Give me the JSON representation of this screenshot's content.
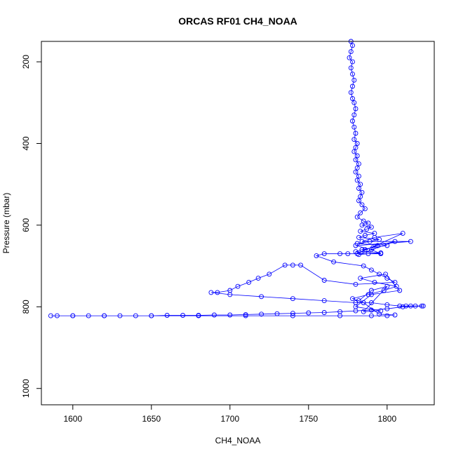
{
  "chart_data": {
    "type": "scatter",
    "title": "ORCAS RF01 CH4_NOAA",
    "xlabel": "CH4_NOAA",
    "ylabel": "Pressure (mbar)",
    "xlim": [
      1580,
      1830
    ],
    "ylim": [
      1040,
      150
    ],
    "y_reversed": true,
    "x_ticks": [
      1600,
      1650,
      1700,
      1750,
      1800
    ],
    "y_ticks": [
      200,
      400,
      600,
      800,
      1000
    ],
    "grid": false,
    "marker": "open-circle",
    "connected": true,
    "color": "#0000ff",
    "series": [
      {
        "x": [
          1777,
          1778,
          1777,
          1776,
          1778,
          1777,
          1778,
          1779,
          1778,
          1777,
          1778,
          1779,
          1780,
          1779,
          1778,
          1779,
          1780,
          1779,
          1781,
          1780,
          1779,
          1781,
          1780,
          1782,
          1781,
          1780,
          1782,
          1781,
          1783,
          1782,
          1784,
          1783,
          1782,
          1784,
          1786,
          1783,
          1781,
          1785,
          1788,
          1784,
          1790,
          1787,
          1783,
          1792,
          1786,
          1782,
          1795,
          1789,
          1781,
          1800,
          1791,
          1784,
          1780,
          1796,
          1788,
          1782,
          1805,
          1794,
          1786,
          1781,
          1810,
          1792,
          1784,
          1815,
          1780,
          1790,
          1796,
          1775,
          1770,
          1760,
          1755,
          1766,
          1785,
          1790,
          1795,
          1800,
          1805,
          1780,
          1760,
          1745,
          1740,
          1735,
          1725,
          1718,
          1712,
          1705,
          1700,
          1692,
          1688,
          1700,
          1720,
          1740,
          1760,
          1780,
          1790,
          1800,
          1808,
          1812,
          1815,
          1818,
          1822,
          1823,
          1810,
          1800,
          1790,
          1780,
          1770,
          1760,
          1750,
          1740,
          1730,
          1720,
          1710,
          1700,
          1690,
          1680,
          1670,
          1660,
          1650,
          1640,
          1630,
          1620,
          1610,
          1600,
          1590,
          1586,
          1600,
          1620,
          1650,
          1680,
          1710,
          1740,
          1770,
          1790,
          1800,
          1805,
          1795,
          1785,
          1778,
          1788,
          1798,
          1806,
          1792,
          1783,
          1799,
          1808,
          1790,
          1780,
          1796,
          1785,
          1800,
          1790,
          1782
        ],
        "y": [
          150,
          160,
          175,
          190,
          200,
          215,
          230,
          245,
          260,
          275,
          290,
          300,
          315,
          330,
          345,
          360,
          375,
          390,
          400,
          410,
          420,
          430,
          440,
          450,
          460,
          470,
          480,
          490,
          500,
          510,
          520,
          530,
          540,
          550,
          560,
          570,
          580,
          590,
          595,
          600,
          605,
          610,
          615,
          620,
          625,
          630,
          635,
          640,
          645,
          650,
          655,
          660,
          665,
          668,
          670,
          672,
          640,
          650,
          660,
          670,
          620,
          630,
          640,
          640,
          650,
          660,
          670,
          670,
          670,
          670,
          675,
          690,
          700,
          710,
          720,
          730,
          740,
          745,
          735,
          698,
          698,
          698,
          720,
          730,
          740,
          750,
          760,
          765,
          765,
          770,
          775,
          780,
          785,
          790,
          790,
          795,
          798,
          798,
          798,
          798,
          798,
          798,
          800,
          805,
          808,
          810,
          812,
          814,
          815,
          816,
          817,
          818,
          819,
          820,
          820,
          821,
          821,
          821,
          822,
          822,
          822,
          822,
          822,
          822,
          822,
          822,
          822,
          822,
          822,
          822,
          822,
          822,
          822,
          822,
          822,
          820,
          818,
          790,
          780,
          770,
          760,
          750,
          740,
          730,
          720,
          760,
          770,
          800,
          810,
          812,
          750,
          760,
          785
        ]
      }
    ]
  }
}
